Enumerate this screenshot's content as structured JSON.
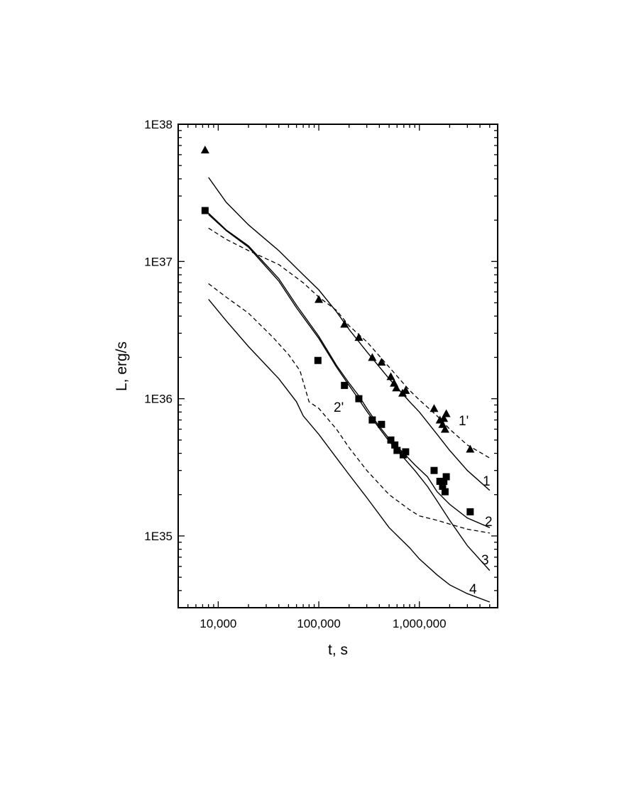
{
  "chart_data": {
    "type": "scatter",
    "xlabel": "t, s",
    "ylabel": "L, erg/s",
    "x_scale": "log",
    "y_scale": "log",
    "xlim": [
      4000,
      6000000
    ],
    "ylim": [
      3e+34,
      1e+38
    ],
    "x_tick_values": [
      10000,
      100000,
      1000000
    ],
    "x_tick_labels": [
      "10,000",
      "100,000",
      "1,000,000"
    ],
    "y_tick_values": [
      1e+35,
      1e+36,
      1e+37,
      1e+38
    ],
    "y_tick_labels": [
      "1E35",
      "1E36",
      "1E37",
      "1E38"
    ],
    "grid": false,
    "series": [
      {
        "name": "1",
        "style": "solid",
        "width": 1.4,
        "points": [
          [
            8000,
            4.1e+37
          ],
          [
            12000,
            2.7e+37
          ],
          [
            20000,
            1.85e+37
          ],
          [
            40000,
            1.2e+37
          ],
          [
            70000,
            8e+36
          ],
          [
            100000,
            6.2e+36
          ],
          [
            150000,
            4.3e+36
          ],
          [
            200000,
            3.2e+36
          ],
          [
            300000,
            2.2e+36
          ],
          [
            500000,
            1.4e+36
          ],
          [
            800000,
            9.5e+35
          ],
          [
            1000000,
            8e+35
          ],
          [
            1500000,
            5.5e+35
          ],
          [
            2000000,
            4.2e+35
          ],
          [
            3000000,
            3e+35
          ],
          [
            5000000,
            2.15e+35
          ]
        ],
        "label": "1"
      },
      {
        "name": "2",
        "style": "solid",
        "width": 1.4,
        "points": [
          [
            8000,
            2.25e+37
          ],
          [
            12000,
            1.7e+37
          ],
          [
            20000,
            1.3e+37
          ],
          [
            40000,
            7.5e+36
          ],
          [
            60000,
            4.8e+36
          ],
          [
            100000,
            2.85e+36
          ],
          [
            150000,
            1.75e+36
          ],
          [
            200000,
            1.3e+36
          ],
          [
            250000,
            1.05e+36
          ],
          [
            300000,
            8.5e+35
          ],
          [
            380000,
            6.6e+35
          ],
          [
            500000,
            5.1e+35
          ],
          [
            700000,
            4e+35
          ],
          [
            900000,
            3.3e+35
          ],
          [
            1200000,
            2.7e+35
          ],
          [
            1500000,
            2.1e+35
          ],
          [
            2000000,
            1.7e+35
          ],
          [
            3000000,
            1.35e+35
          ],
          [
            5000000,
            1.15e+35
          ]
        ],
        "label": "2"
      },
      {
        "name": "3",
        "style": "solid",
        "width": 1.4,
        "points": [
          [
            8000,
            2.2e+37
          ],
          [
            12000,
            1.68e+37
          ],
          [
            20000,
            1.27e+37
          ],
          [
            40000,
            7.2e+36
          ],
          [
            60000,
            4.6e+36
          ],
          [
            100000,
            2.75e+36
          ],
          [
            150000,
            1.7e+36
          ],
          [
            200000,
            1.25e+36
          ],
          [
            250000,
            9.9e+35
          ],
          [
            300000,
            8.1e+35
          ],
          [
            380000,
            6.4e+35
          ],
          [
            500000,
            4.9e+35
          ],
          [
            700000,
            3.7e+35
          ],
          [
            900000,
            3e+35
          ],
          [
            1200000,
            2.3e+35
          ],
          [
            1500000,
            1.8e+35
          ],
          [
            2000000,
            1.3e+35
          ],
          [
            3000000,
            8.5e+34
          ],
          [
            5000000,
            5.6e+34
          ]
        ],
        "label": "3"
      },
      {
        "name": "4",
        "style": "solid",
        "width": 1.4,
        "points": [
          [
            8000,
            5.3e+36
          ],
          [
            12000,
            3.7e+36
          ],
          [
            20000,
            2.4e+36
          ],
          [
            40000,
            1.4e+36
          ],
          [
            60000,
            9.5e+35
          ],
          [
            70000,
            7.5e+35
          ],
          [
            100000,
            5.5e+35
          ],
          [
            150000,
            3.7e+35
          ],
          [
            200000,
            2.8e+35
          ],
          [
            300000,
            1.9e+35
          ],
          [
            500000,
            1.15e+35
          ],
          [
            800000,
            8.2e+34
          ],
          [
            1000000,
            6.8e+34
          ],
          [
            1500000,
            5.2e+34
          ],
          [
            2000000,
            4.4e+34
          ],
          [
            3000000,
            3.8e+34
          ],
          [
            5000000,
            3.3e+34
          ]
        ],
        "label": "4"
      },
      {
        "name": "2'",
        "style": "dashed",
        "width": 1.3,
        "points": [
          [
            8000,
            6.9e+36
          ],
          [
            12000,
            5.5e+36
          ],
          [
            20000,
            4.2e+36
          ],
          [
            35000,
            2.8e+36
          ],
          [
            50000,
            2.1e+36
          ],
          [
            65000,
            1.6e+36
          ],
          [
            80000,
            9.5e+35
          ],
          [
            100000,
            8.5e+35
          ],
          [
            150000,
            6e+35
          ],
          [
            200000,
            4.4e+35
          ],
          [
            300000,
            3e+35
          ],
          [
            500000,
            2e+35
          ],
          [
            800000,
            1.55e+35
          ],
          [
            1000000,
            1.4e+35
          ],
          [
            1500000,
            1.3e+35
          ],
          [
            2000000,
            1.22e+35
          ],
          [
            3000000,
            1.12e+35
          ],
          [
            5000000,
            1.05e+35
          ]
        ],
        "label": "2'"
      },
      {
        "name": "1'",
        "style": "dashed",
        "width": 1.3,
        "points": [
          [
            8000,
            1.75e+37
          ],
          [
            12000,
            1.45e+37
          ],
          [
            20000,
            1.2e+37
          ],
          [
            40000,
            9.5e+36
          ],
          [
            70000,
            7e+36
          ],
          [
            100000,
            5.5e+36
          ],
          [
            150000,
            4.4e+36
          ],
          [
            200000,
            3.4e+36
          ],
          [
            300000,
            2.6e+36
          ],
          [
            500000,
            1.7e+36
          ],
          [
            800000,
            1.15e+36
          ],
          [
            1000000,
            9.8e+35
          ],
          [
            1500000,
            7.5e+35
          ],
          [
            2000000,
            6e+35
          ],
          [
            3000000,
            4.6e+35
          ],
          [
            5000000,
            3.7e+35
          ]
        ],
        "label": "1'"
      },
      {
        "name": "triangles",
        "marker": "triangle",
        "points": [
          [
            7400,
            6.5e+37
          ],
          [
            100000,
            5.3e+36
          ],
          [
            180000,
            3.5e+36
          ],
          [
            250000,
            2.8e+36
          ],
          [
            340000,
            2e+36
          ],
          [
            420000,
            1.85e+36
          ],
          [
            520000,
            1.45e+36
          ],
          [
            560000,
            1.3e+36
          ],
          [
            590000,
            1.2e+36
          ],
          [
            680000,
            1.1e+36
          ],
          [
            730000,
            1.15e+36
          ],
          [
            1400000,
            8.5e+35
          ],
          [
            1600000,
            7e+35
          ],
          [
            1700000,
            6.5e+35
          ],
          [
            1750000,
            7.2e+35
          ],
          [
            1800000,
            6e+35
          ],
          [
            1850000,
            7.8e+35
          ],
          [
            3200000,
            4.3e+35
          ]
        ]
      },
      {
        "name": "squares",
        "marker": "square",
        "points": [
          [
            7400,
            2.35e+37
          ],
          [
            98000,
            1.9e+36
          ],
          [
            180000,
            1.25e+36
          ],
          [
            250000,
            1e+36
          ],
          [
            340000,
            7e+35
          ],
          [
            420000,
            6.5e+35
          ],
          [
            520000,
            5e+35
          ],
          [
            570000,
            4.6e+35
          ],
          [
            600000,
            4.2e+35
          ],
          [
            690000,
            3.9e+35
          ],
          [
            730000,
            4.1e+35
          ],
          [
            1400000,
            3e+35
          ],
          [
            1600000,
            2.5e+35
          ],
          [
            1700000,
            2.3e+35
          ],
          [
            1750000,
            2.5e+35
          ],
          [
            1800000,
            2.1e+35
          ],
          [
            1850000,
            2.7e+35
          ],
          [
            3200000,
            1.5e+35
          ]
        ]
      }
    ]
  }
}
